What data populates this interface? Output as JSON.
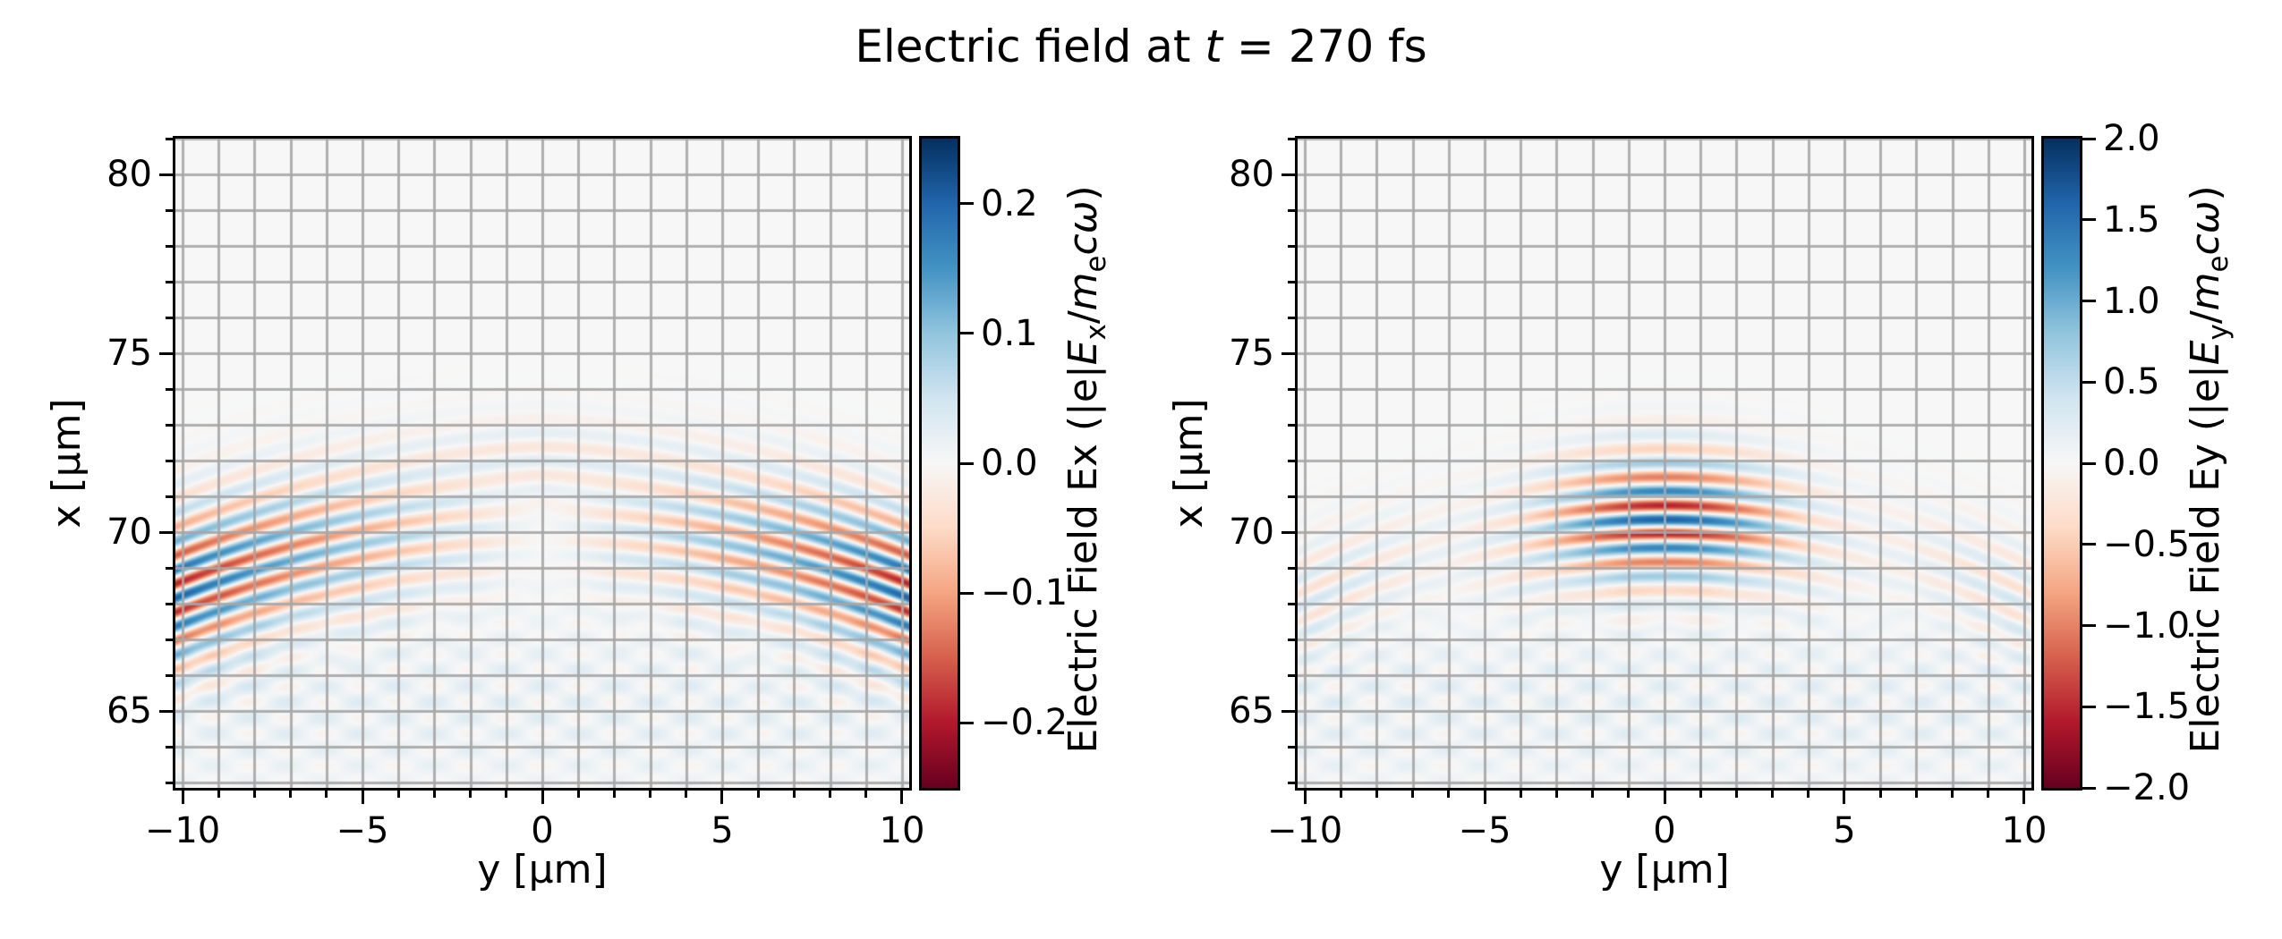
{
  "title": {
    "text": "Electric field at t = 270 fs",
    "html": "Electric field at <i>t</i> = 270 fs",
    "time_fs": 270
  },
  "figure": {
    "background": "#ffffff",
    "axes_background": "#f7f7f7",
    "grid_color": "rgba(166,166,166,0.9)",
    "spine_color": "#000000",
    "colormap": "RdBu",
    "colormap_anchors": [
      [
        103,
        0,
        31
      ],
      [
        178,
        24,
        43
      ],
      [
        214,
        96,
        77
      ],
      [
        244,
        165,
        130
      ],
      [
        253,
        219,
        199
      ],
      [
        247,
        247,
        247
      ],
      [
        209,
        229,
        240
      ],
      [
        146,
        197,
        222
      ],
      [
        67,
        147,
        195
      ],
      [
        33,
        102,
        172
      ],
      [
        5,
        48,
        97
      ]
    ]
  },
  "chart_data": [
    {
      "id": "Ex",
      "type": "heatmap",
      "xlabel": "y [μm]",
      "ylabel": "x [μm]",
      "xlim": [
        -10.2,
        10.2
      ],
      "ylim": [
        62.85,
        81.0
      ],
      "xticks": {
        "values": [
          -10,
          -5,
          0,
          5,
          10
        ],
        "labels": [
          "−10",
          "−5",
          "0",
          "5",
          "10"
        ],
        "minor_step_um": 1
      },
      "yticks": {
        "values": [
          80,
          75,
          70,
          65
        ],
        "labels": [
          "80",
          "75",
          "70",
          "65"
        ],
        "minor_step_um": 1
      },
      "grid": {
        "visible": true,
        "step_um": 1
      },
      "colorbar": {
        "label_text": "Electric Field Ex (|e|Ex/mecω)",
        "label_html": "Electric Field Ex (|e|<i>E</i><sub>x</sub>/<i>m</i><sub>e</sub><i>cω</i>)",
        "vmin": -0.25,
        "vmax": 0.25,
        "tick_values": [
          0.2,
          0.1,
          0.0,
          -0.1,
          -0.2
        ],
        "tick_labels": [
          "0.2",
          "0.1",
          "0.0",
          "−0.1",
          "−0.2"
        ]
      },
      "field_model": {
        "description": "Transverse component Ex of a focused laser pulse: stripe pattern with wavelength 0.8 um along x, centered near x=70.3 um, node at y=0, amplitude growing toward |y|=10 (peak ~0.2), wavefronts curved downward toward the beam edges, plus faint diagonal interference fringes below x~67 um.",
        "peak": 0.25,
        "center_x_um": 70.3,
        "wavelength_um": 0.8,
        "curvature_R_um": 26,
        "sigma_x_um": 2.1,
        "node_softness_um": 3.4,
        "base_amp": 0.3,
        "edge_amp": 0.5,
        "phase": 1.2,
        "upper_band_x_um": 72.0,
        "upper_band_amp": 0.035,
        "floor_fringes": {
          "center_x_um": 65.2,
          "sigma_um": 2.6,
          "kx": 7.0,
          "ky": 3.1,
          "amp": 0.022,
          "bias": 0.012
        }
      }
    },
    {
      "id": "Ey",
      "type": "heatmap",
      "xlabel": "y [μm]",
      "ylabel": "x [μm]",
      "xlim": [
        -10.2,
        10.2
      ],
      "ylim": [
        62.85,
        81.0
      ],
      "xticks": {
        "values": [
          -10,
          -5,
          0,
          5,
          10
        ],
        "labels": [
          "−10",
          "−5",
          "0",
          "5",
          "10"
        ],
        "minor_step_um": 1
      },
      "yticks": {
        "values": [
          80,
          75,
          70,
          65
        ],
        "labels": [
          "80",
          "75",
          "70",
          "65"
        ],
        "minor_step_um": 1
      },
      "grid": {
        "visible": true,
        "step_um": 1
      },
      "colorbar": {
        "label_text": "Electric Field Ey (|e|Ey/mecω)",
        "label_html": "Electric Field Ey (|e|<i>E</i><sub>y</sub>/<i>m</i><sub>e</sub><i>cω</i>)",
        "vmin": -2.0,
        "vmax": 2.0,
        "tick_values": [
          2.0,
          1.5,
          1.0,
          0.5,
          0.0,
          -0.5,
          -1.0,
          -1.5,
          -2.0
        ],
        "tick_labels": [
          "2.0",
          "1.5",
          "1.0",
          "0.5",
          "0.0",
          "−0.5",
          "−1.0",
          "−1.5",
          "−2.0"
        ]
      },
      "field_model": {
        "description": "Main polarization component Ey of the focused laser pulse: Gaussian envelope centered at x=70.35 um, y=0 (sigma_x~1.75 um, sigma_y~3.4 um), carrier wavelength 0.8 um along x, peak |Ey|~1.6, curved wavefronts (R~21 um) producing weaker arcs near |y|=10, plus faint diagonal interference fringes below x~67 um.",
        "peak": 1.62,
        "center_x_um": 70.35,
        "wavelength_um": 0.8,
        "curvature_R_um": 21,
        "sigma_x_um": 1.75,
        "sigma_y_um": 3.4,
        "wing_amp": 0.22,
        "wing_center_um": 9.9,
        "wing_sigma_um": 3.2,
        "phase": 0,
        "floor_fringes": {
          "center_x_um": 65.2,
          "sigma_um": 2.6,
          "kx": 7.0,
          "ky": 3.1,
          "amp": 0.18,
          "bias": 0.1
        }
      }
    }
  ]
}
